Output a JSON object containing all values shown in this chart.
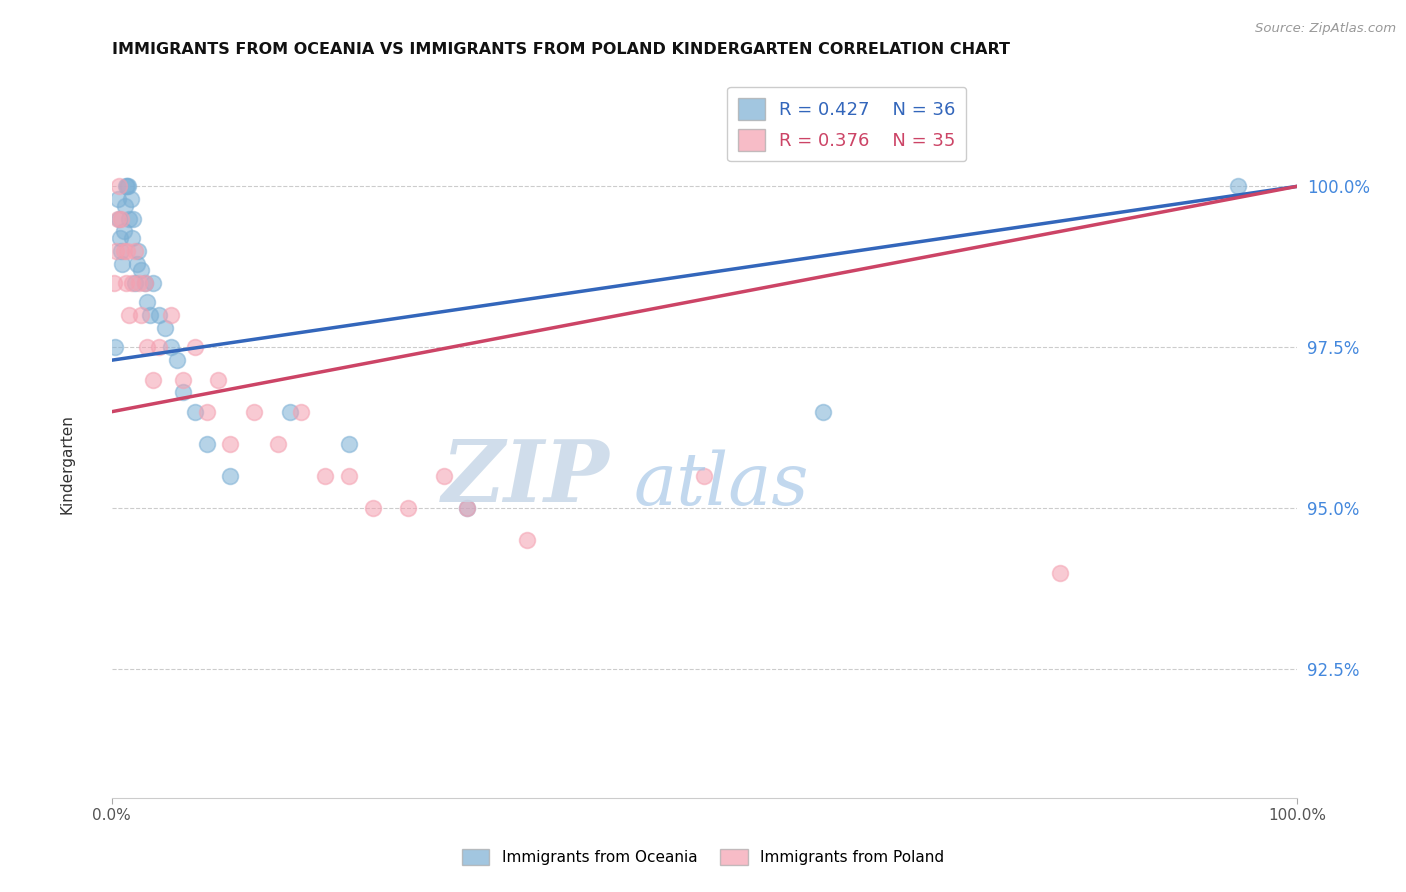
{
  "title": "IMMIGRANTS FROM OCEANIA VS IMMIGRANTS FROM POLAND KINDERGARTEN CORRELATION CHART",
  "source": "Source: ZipAtlas.com",
  "ylabel": "Kindergarten",
  "xlim": [
    0.0,
    100.0
  ],
  "ylim": [
    90.5,
    101.8
  ],
  "yticks": [
    92.5,
    95.0,
    97.5,
    100.0
  ],
  "ytick_labels": [
    "92.5%",
    "95.0%",
    "97.5%",
    "100.0%"
  ],
  "xticks": [
    0.0,
    100.0
  ],
  "xtick_labels": [
    "0.0%",
    "100.0%"
  ],
  "legend_blue_label": "Immigrants from Oceania",
  "legend_pink_label": "Immigrants from Poland",
  "R_blue": 0.427,
  "N_blue": 36,
  "R_pink": 0.376,
  "N_pink": 35,
  "blue_color": "#7BAFD4",
  "pink_color": "#F4A0B0",
  "blue_line_color": "#3366BB",
  "pink_line_color": "#CC4466",
  "watermark_zip_color": "#C8D8E8",
  "watermark_atlas_color": "#A8C8E8",
  "background_color": "#FFFFFF",
  "blue_x": [
    0.3,
    0.5,
    0.6,
    0.7,
    0.8,
    0.9,
    1.0,
    1.1,
    1.2,
    1.3,
    1.4,
    1.5,
    1.6,
    1.7,
    1.8,
    2.0,
    2.1,
    2.2,
    2.5,
    2.8,
    3.0,
    3.2,
    3.5,
    4.0,
    4.5,
    5.0,
    5.5,
    6.0,
    7.0,
    8.0,
    10.0,
    15.0,
    20.0,
    30.0,
    60.0,
    95.0
  ],
  "blue_y": [
    97.5,
    99.8,
    99.5,
    99.2,
    99.0,
    98.8,
    99.3,
    99.7,
    100.0,
    100.0,
    100.0,
    99.5,
    99.8,
    99.2,
    99.5,
    98.5,
    98.8,
    99.0,
    98.7,
    98.5,
    98.2,
    98.0,
    98.5,
    98.0,
    97.8,
    97.5,
    97.3,
    96.8,
    96.5,
    96.0,
    95.5,
    96.5,
    96.0,
    95.0,
    96.5,
    100.0
  ],
  "pink_x": [
    0.2,
    0.4,
    0.5,
    0.6,
    0.8,
    1.0,
    1.2,
    1.3,
    1.5,
    1.7,
    2.0,
    2.3,
    2.5,
    2.8,
    3.0,
    3.5,
    4.0,
    5.0,
    6.0,
    7.0,
    8.0,
    9.0,
    10.0,
    12.0,
    14.0,
    16.0,
    18.0,
    20.0,
    22.0,
    25.0,
    28.0,
    30.0,
    35.0,
    50.0,
    80.0
  ],
  "pink_y": [
    98.5,
    99.0,
    99.5,
    100.0,
    99.5,
    99.0,
    98.5,
    99.0,
    98.0,
    98.5,
    99.0,
    98.5,
    98.0,
    98.5,
    97.5,
    97.0,
    97.5,
    98.0,
    97.0,
    97.5,
    96.5,
    97.0,
    96.0,
    96.5,
    96.0,
    96.5,
    95.5,
    95.5,
    95.0,
    95.0,
    95.5,
    95.0,
    94.5,
    95.5,
    94.0
  ],
  "blue_line_x": [
    0.0,
    100.0
  ],
  "blue_line_y": [
    97.3,
    100.0
  ],
  "pink_line_x": [
    0.0,
    100.0
  ],
  "pink_line_y": [
    96.5,
    100.0
  ]
}
